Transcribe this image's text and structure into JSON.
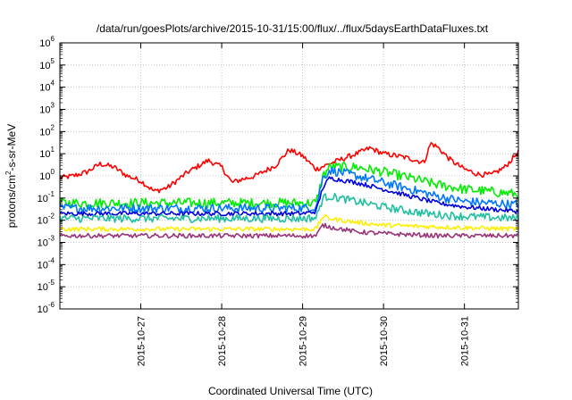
{
  "chart_data": {
    "type": "line",
    "title": "/data/run/goesPlots/archive/2015-10-31/15:00/flux/../flux/5daysEarthDataFluxes.txt",
    "xlabel": "Coordinated Universal Time (UTC)",
    "ylabel": {
      "pre": "protons/cm",
      "sup": "2",
      "post": "-s-sr-MeV"
    },
    "yscale": "log",
    "ylim": [
      1e-06,
      1000000.0
    ],
    "y_tick_labels": [
      {
        "exp": "-6",
        "v": -6
      },
      {
        "exp": "-5",
        "v": -5
      },
      {
        "exp": "-4",
        "v": -4
      },
      {
        "exp": "-3",
        "v": -3
      },
      {
        "exp": "-2",
        "v": -2
      },
      {
        "exp": "-1",
        "v": -1
      },
      {
        "exp": "0",
        "v": 0
      },
      {
        "exp": "1",
        "v": 1
      },
      {
        "exp": "2",
        "v": 2
      },
      {
        "exp": "3",
        "v": 3
      },
      {
        "exp": "4",
        "v": 4
      },
      {
        "exp": "5",
        "v": 5
      },
      {
        "exp": "6",
        "v": 6
      }
    ],
    "xlim": [
      "2015-10-26T00:00",
      "2015-10-31T16:00"
    ],
    "x_ticks": [
      "2015-10-27",
      "2015-10-28",
      "2015-10-29",
      "2015-10-30",
      "2015-10-31"
    ],
    "grid": true,
    "series": [
      {
        "color": "#ff0000",
        "noise": 0.12,
        "points": [
          [
            "2015-10-26T00:00",
            0.8
          ],
          [
            "2015-10-26T04:00",
            1.0
          ],
          [
            "2015-10-26T08:00",
            1.5
          ],
          [
            "2015-10-26T12:00",
            3.5
          ],
          [
            "2015-10-26T16:00",
            2.5
          ],
          [
            "2015-10-26T20:00",
            1.0
          ],
          [
            "2015-10-27T00:00",
            0.6
          ],
          [
            "2015-10-27T04:00",
            0.2
          ],
          [
            "2015-10-27T08:00",
            0.3
          ],
          [
            "2015-10-27T14:00",
            1.5
          ],
          [
            "2015-10-27T20:00",
            5.0
          ],
          [
            "2015-10-28T00:00",
            2.5
          ],
          [
            "2015-10-28T03:00",
            0.5
          ],
          [
            "2015-10-28T06:00",
            0.7
          ],
          [
            "2015-10-28T10:00",
            1.0
          ],
          [
            "2015-10-28T16:00",
            3.0
          ],
          [
            "2015-10-28T20:00",
            15
          ],
          [
            "2015-10-29T00:00",
            8
          ],
          [
            "2015-10-29T04:00",
            2.0
          ],
          [
            "2015-10-29T08:00",
            3.5
          ],
          [
            "2015-10-29T12:00",
            6.0
          ],
          [
            "2015-10-29T16:00",
            10
          ],
          [
            "2015-10-29T20:00",
            18
          ],
          [
            "2015-10-30T00:00",
            10
          ],
          [
            "2015-10-30T04:00",
            8
          ],
          [
            "2015-10-30T08:00",
            6
          ],
          [
            "2015-10-30T12:00",
            4
          ],
          [
            "2015-10-30T14:00",
            30
          ],
          [
            "2015-10-30T16:00",
            20
          ],
          [
            "2015-10-30T20:00",
            5
          ],
          [
            "2015-10-31T00:00",
            2.0
          ],
          [
            "2015-10-31T04:00",
            1.2
          ],
          [
            "2015-10-31T08:00",
            1.1
          ],
          [
            "2015-10-31T12:00",
            2.5
          ],
          [
            "2015-10-31T16:00",
            12
          ]
        ]
      },
      {
        "color": "#00ee00",
        "noise": 0.22,
        "points": [
          [
            "2015-10-26T00:00",
            0.06
          ],
          [
            "2015-10-29T00:00",
            0.06
          ],
          [
            "2015-10-29T04:00",
            0.06
          ],
          [
            "2015-10-29T06:00",
            1.0
          ],
          [
            "2015-10-29T08:00",
            2.5
          ],
          [
            "2015-10-29T16:00",
            2.5
          ],
          [
            "2015-10-30T00:00",
            1.5
          ],
          [
            "2015-10-30T08:00",
            0.8
          ],
          [
            "2015-10-30T16:00",
            0.4
          ],
          [
            "2015-10-31T00:00",
            0.25
          ],
          [
            "2015-10-31T16:00",
            0.15
          ]
        ]
      },
      {
        "color": "#0077ff",
        "noise": 0.2,
        "points": [
          [
            "2015-10-26T00:00",
            0.035
          ],
          [
            "2015-10-29T00:00",
            0.035
          ],
          [
            "2015-10-29T04:00",
            0.04
          ],
          [
            "2015-10-29T06:00",
            0.8
          ],
          [
            "2015-10-29T08:00",
            1.8
          ],
          [
            "2015-10-29T16:00",
            1.0
          ],
          [
            "2015-10-30T00:00",
            0.5
          ],
          [
            "2015-10-30T08:00",
            0.25
          ],
          [
            "2015-10-30T16:00",
            0.12
          ],
          [
            "2015-10-31T00:00",
            0.07
          ],
          [
            "2015-10-31T16:00",
            0.05
          ]
        ]
      },
      {
        "color": "#0000dd",
        "noise": 0.1,
        "points": [
          [
            "2015-10-26T00:00",
            0.02
          ],
          [
            "2015-10-29T00:00",
            0.02
          ],
          [
            "2015-10-29T04:00",
            0.025
          ],
          [
            "2015-10-29T06:00",
            0.3
          ],
          [
            "2015-10-29T08:00",
            0.8
          ],
          [
            "2015-10-29T16:00",
            0.5
          ],
          [
            "2015-10-30T00:00",
            0.25
          ],
          [
            "2015-10-30T08:00",
            0.12
          ],
          [
            "2015-10-30T16:00",
            0.06
          ],
          [
            "2015-10-31T00:00",
            0.04
          ],
          [
            "2015-10-31T16:00",
            0.025
          ]
        ]
      },
      {
        "color": "#20c0a0",
        "noise": 0.18,
        "points": [
          [
            "2015-10-26T00:00",
            0.012
          ],
          [
            "2015-10-29T00:00",
            0.012
          ],
          [
            "2015-10-29T04:00",
            0.013
          ],
          [
            "2015-10-29T06:00",
            0.1
          ],
          [
            "2015-10-29T08:00",
            0.12
          ],
          [
            "2015-10-29T16:00",
            0.07
          ],
          [
            "2015-10-30T00:00",
            0.04
          ],
          [
            "2015-10-30T08:00",
            0.025
          ],
          [
            "2015-10-30T16:00",
            0.018
          ],
          [
            "2015-10-31T00:00",
            0.015
          ],
          [
            "2015-10-31T16:00",
            0.012
          ]
        ]
      },
      {
        "color": "#ffee00",
        "noise": 0.1,
        "points": [
          [
            "2015-10-26T00:00",
            0.004
          ],
          [
            "2015-10-29T00:00",
            0.004
          ],
          [
            "2015-10-29T04:00",
            0.004
          ],
          [
            "2015-10-29T06:00",
            0.015
          ],
          [
            "2015-10-29T08:00",
            0.012
          ],
          [
            "2015-10-29T16:00",
            0.008
          ],
          [
            "2015-10-30T00:00",
            0.006
          ],
          [
            "2015-10-30T16:00",
            0.005
          ],
          [
            "2015-10-31T16:00",
            0.004
          ]
        ]
      },
      {
        "color": "#993377",
        "noise": 0.1,
        "points": [
          [
            "2015-10-26T00:00",
            0.002
          ],
          [
            "2015-10-29T00:00",
            0.002
          ],
          [
            "2015-10-29T04:00",
            0.002
          ],
          [
            "2015-10-29T06:00",
            0.006
          ],
          [
            "2015-10-29T08:00",
            0.005
          ],
          [
            "2015-10-29T16:00",
            0.003
          ],
          [
            "2015-10-30T00:00",
            0.0025
          ],
          [
            "2015-10-30T16:00",
            0.002
          ],
          [
            "2015-10-31T16:00",
            0.002
          ]
        ]
      }
    ]
  }
}
